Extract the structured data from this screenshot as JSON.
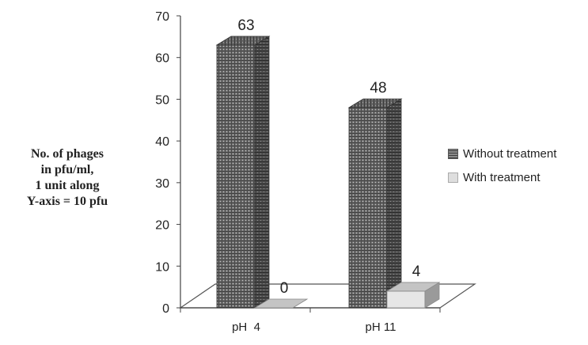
{
  "chart_data": {
    "type": "bar",
    "categories": [
      "pH  4",
      "pH 11"
    ],
    "series": [
      {
        "name": "Without treatment",
        "values": [
          63,
          48
        ],
        "color": "#5e5e5e"
      },
      {
        "name": "With treatment",
        "values": [
          0,
          4
        ],
        "color": "#d9d9d9"
      }
    ],
    "data_labels": [
      [
        "63",
        "48"
      ],
      [
        "0",
        "4"
      ]
    ],
    "ylim": [
      0,
      70
    ],
    "yticks": [
      0,
      10,
      20,
      30,
      40,
      50,
      60,
      70
    ],
    "ylabel_lines": [
      "No. of phages",
      "in pfu/ml,",
      "1 unit along",
      "Y-axis = 10 pfu"
    ],
    "xlabel": "",
    "title": "",
    "legend_position": "right",
    "grid": false,
    "style": "3d-bar"
  }
}
